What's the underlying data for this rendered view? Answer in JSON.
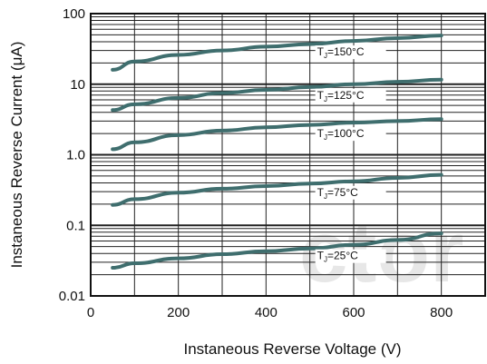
{
  "chart_data": {
    "type": "line",
    "xlabel": "Instaneous Reverse Voltage (V)",
    "ylabel": "Instaneous Reverse Current (μA)",
    "xlim": [
      0,
      900
    ],
    "ylim": [
      0.01,
      100
    ],
    "yscale": "log",
    "x_ticks": [
      "0",
      "200",
      "400",
      "600",
      "800"
    ],
    "y_ticks": [
      "0.01",
      "0.1",
      "1.0",
      "10",
      "100"
    ],
    "grid": true,
    "watermark": "ctor",
    "series": [
      {
        "name": "TJ=150°C",
        "x": [
          50,
          100,
          200,
          300,
          400,
          500,
          600,
          700,
          800
        ],
        "y": [
          16,
          21,
          26,
          30,
          34,
          37,
          41,
          45,
          49
        ]
      },
      {
        "name": "TJ=125°C",
        "x": [
          50,
          100,
          200,
          300,
          400,
          500,
          600,
          700,
          800
        ],
        "y": [
          4.3,
          5.2,
          6.4,
          7.5,
          8.3,
          9.1,
          10.0,
          10.8,
          11.6
        ]
      },
      {
        "name": "TJ=100°C",
        "x": [
          50,
          100,
          200,
          300,
          400,
          500,
          600,
          700,
          800
        ],
        "y": [
          1.2,
          1.5,
          1.9,
          2.2,
          2.45,
          2.65,
          2.85,
          3.0,
          3.2
        ]
      },
      {
        "name": "TJ=75°C",
        "x": [
          50,
          100,
          200,
          300,
          400,
          500,
          600,
          700,
          800
        ],
        "y": [
          0.195,
          0.235,
          0.29,
          0.33,
          0.36,
          0.39,
          0.42,
          0.47,
          0.52
        ]
      },
      {
        "name": "TJ=25°C",
        "x": [
          50,
          100,
          200,
          300,
          400,
          500,
          600,
          700,
          800
        ],
        "y": [
          0.025,
          0.029,
          0.034,
          0.039,
          0.043,
          0.047,
          0.053,
          0.062,
          0.077
        ]
      }
    ],
    "annotations": [
      {
        "main": "T",
        "sub": "J",
        "rest": "=150°C",
        "series": 0
      },
      {
        "main": "T",
        "sub": "J",
        "rest": "=125°C",
        "series": 1
      },
      {
        "main": "T",
        "sub": "J",
        "rest": "=100°C",
        "series": 2
      },
      {
        "main": "T",
        "sub": "J",
        "rest": "=75°C",
        "series": 3
      },
      {
        "main": "T",
        "sub": "J",
        "rest": "=25°C",
        "series": 4
      }
    ],
    "line_color": "#3f6e6e"
  }
}
